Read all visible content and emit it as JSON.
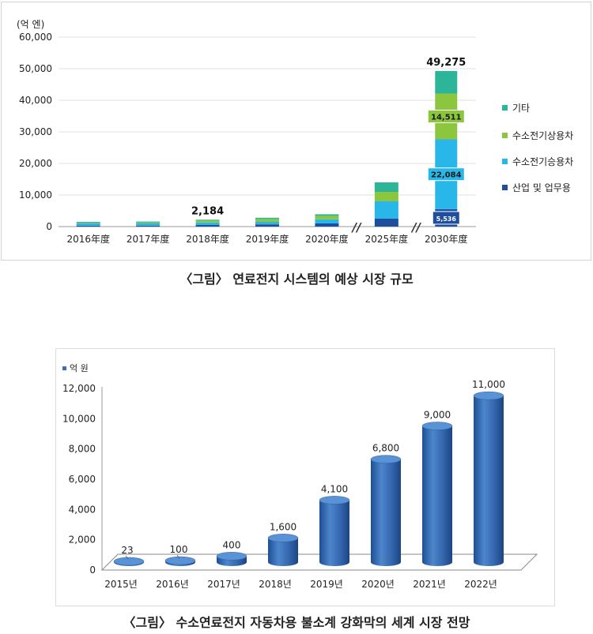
{
  "charts": [
    {
      "caption": "〈그림〉 연료전지 시스템의 예상 시장 규모",
      "chart_data": {
        "type": "bar",
        "stacked": true,
        "unit_label": "(억 엔)",
        "categories": [
          "2016年度",
          "2017年度",
          "2018年度",
          "2019年度",
          "2020年度",
          "2025年度",
          "2030年度"
        ],
        "axis_breaks_before": [
          "2025年度",
          "2030年度"
        ],
        "axis_break_label": "//",
        "ylim": [
          0,
          60000
        ],
        "yticks": [
          "60,000",
          "50,000",
          "40,000",
          "30,000",
          "20,000",
          "10,000",
          "0"
        ],
        "ytick_values": [
          60000,
          50000,
          40000,
          30000,
          20000,
          10000,
          0
        ],
        "grid": true,
        "legend_position": "right",
        "series": [
          {
            "name": "산업 및 업무용",
            "color": "#1f4e9e",
            "values": [
              300,
              300,
              500,
              700,
              1000,
              2500,
              5536
            ]
          },
          {
            "name": "수소전기승용차",
            "color": "#29b6e8",
            "values": [
              700,
              700,
              800,
              800,
              1300,
              5500,
              22084
            ]
          },
          {
            "name": "수소전기상용차",
            "color": "#8cc63f",
            "values": [
              200,
              300,
              600,
              900,
              1100,
              3000,
              14511
            ]
          },
          {
            "name": "기타",
            "color": "#2cb598",
            "values": [
              300,
              300,
              284,
              400,
              500,
              3000,
              7144
            ]
          }
        ],
        "data_labels": [
          {
            "category": "2018年度",
            "text": "2,184",
            "value": 2184
          },
          {
            "category": "2030年度",
            "text": "49,275",
            "value": 49275
          }
        ],
        "segment_labels": [
          {
            "category": "2030年度",
            "series": "산업 및 업무용",
            "text": "5,536"
          },
          {
            "category": "2030年度",
            "series": "수소전기승용차",
            "text": "22,084"
          },
          {
            "category": "2030年度",
            "series": "수소전기상용차",
            "text": "14,511"
          }
        ]
      }
    },
    {
      "caption": "〈그림〉 수소연료전지 자동차용 불소계 강화막의 세계 시장 전망",
      "chart_data": {
        "type": "bar",
        "style": "3d-cylinder",
        "categories": [
          "2015년",
          "2016년",
          "2017년",
          "2018년",
          "2019년",
          "2020년",
          "2021년",
          "2022년"
        ],
        "series": [
          {
            "name": "억 원",
            "color": "#3a6fb6",
            "values": [
              23,
              100,
              400,
              1600,
              4100,
              6800,
              9000,
              11000
            ]
          }
        ],
        "data_labels": [
          "23",
          "100",
          "400",
          "1,600",
          "4,100",
          "6,800",
          "9,000",
          "11,000"
        ],
        "ylim": [
          0,
          12000
        ],
        "yticks": [
          "12,000",
          "10,000",
          "8,000",
          "6,000",
          "4,000",
          "2,000",
          "0"
        ],
        "ytick_values": [
          12000,
          10000,
          8000,
          6000,
          4000,
          2000,
          0
        ],
        "grid": false,
        "legend_position": "top-left"
      }
    }
  ]
}
